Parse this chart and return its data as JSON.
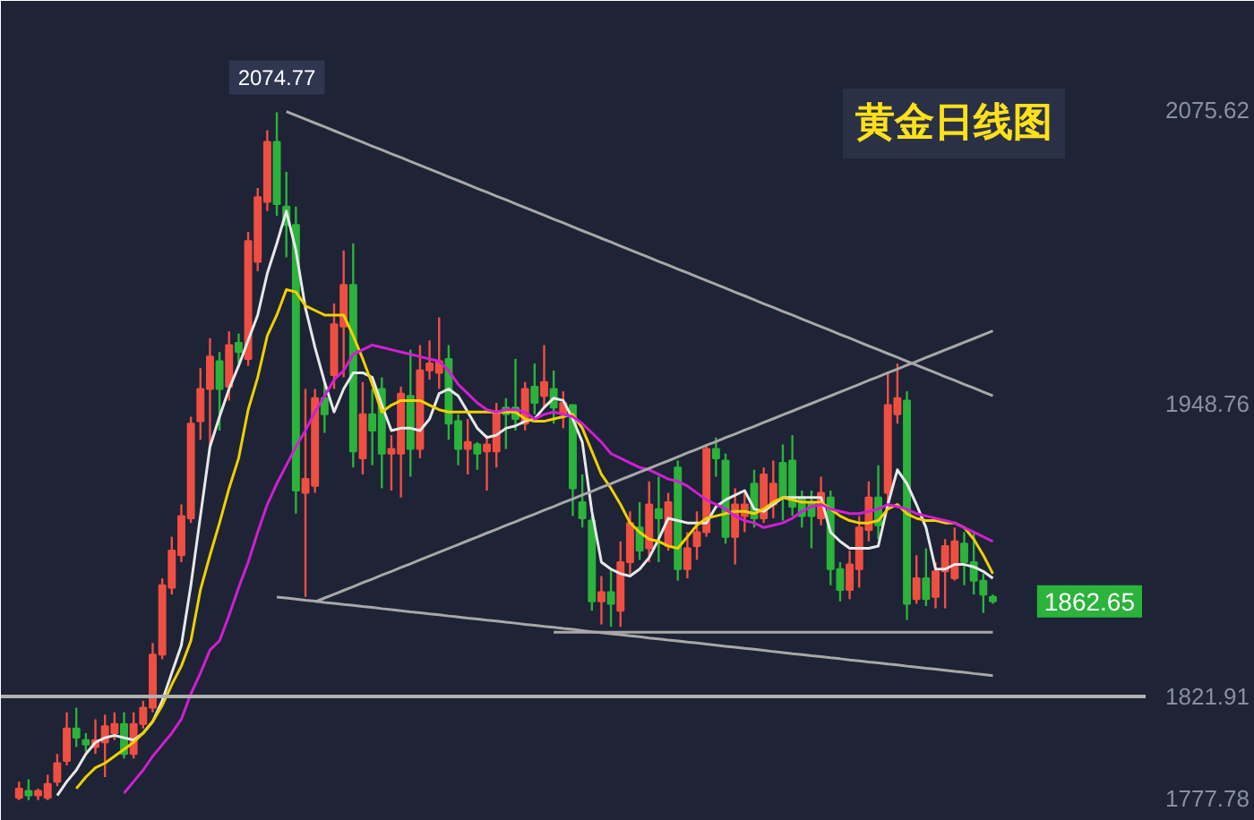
{
  "chart_data": {
    "type": "candlestick",
    "title": "黄金日线图",
    "categories": [
      null,
      null,
      null,
      null,
      null,
      null,
      null,
      null,
      null,
      null,
      null,
      null,
      null,
      null,
      null,
      null,
      null,
      null,
      null,
      null,
      null,
      null,
      null,
      null,
      null,
      null,
      null,
      null,
      null,
      null,
      null,
      null,
      null,
      null,
      null,
      null,
      null,
      null,
      null,
      null,
      null,
      null,
      null,
      null,
      null,
      null,
      null,
      null,
      null,
      null,
      null,
      null,
      null,
      null,
      null,
      null,
      null,
      null,
      null,
      null,
      null,
      null,
      null,
      null,
      null,
      null,
      null,
      null,
      null,
      null,
      null,
      null,
      null,
      null,
      null,
      null,
      null,
      null,
      null,
      null,
      null,
      null,
      null,
      null,
      null,
      null,
      null,
      null,
      null,
      null,
      null,
      null,
      null,
      null,
      null,
      null,
      null,
      null,
      null,
      null,
      null,
      null,
      null
    ],
    "ohlc": [
      [
        1778,
        1785,
        1777,
        1782
      ],
      [
        1781,
        1786,
        1777,
        1779
      ],
      [
        1779,
        1782,
        1777,
        1781
      ],
      [
        1778,
        1788,
        1777,
        1784
      ],
      [
        1785,
        1797,
        1783,
        1793
      ],
      [
        1794,
        1815,
        1792,
        1808
      ],
      [
        1808,
        1817,
        1800,
        1804
      ],
      [
        1803,
        1806,
        1798,
        1801
      ],
      [
        1800,
        1812,
        1797,
        1803
      ],
      [
        1802,
        1814,
        1787,
        1809
      ],
      [
        1806,
        1815,
        1803,
        1810
      ],
      [
        1810,
        1815,
        1795,
        1797
      ],
      [
        1797,
        1815,
        1795,
        1810
      ],
      [
        1810,
        1820,
        1808,
        1817
      ],
      [
        1817,
        1845,
        1815,
        1840
      ],
      [
        1840,
        1873,
        1838,
        1870
      ],
      [
        1869,
        1891,
        1866,
        1885
      ],
      [
        1883,
        1905,
        1880,
        1900
      ],
      [
        1899,
        1943,
        1897,
        1940
      ],
      [
        1941,
        1964,
        1933,
        1955
      ],
      [
        1955,
        1977,
        1930,
        1969
      ],
      [
        1967,
        1971,
        1937,
        1955
      ],
      [
        1956,
        1980,
        1950,
        1974
      ],
      [
        1975,
        1979,
        1966,
        1971
      ],
      [
        1968,
        2023,
        1965,
        2019
      ],
      [
        2010,
        2042,
        2006,
        2038
      ],
      [
        2036,
        2067,
        2032,
        2062
      ],
      [
        2062,
        2074.77,
        2030,
        2035
      ],
      [
        2034,
        2049,
        2012,
        2026
      ],
      [
        2026,
        2034,
        1901,
        1911
      ],
      [
        1910,
        1955,
        1865,
        1916
      ],
      [
        1913,
        1955,
        1910,
        1951
      ],
      [
        1951,
        1958,
        1936,
        1944
      ],
      [
        1961,
        1992,
        1955,
        1983
      ],
      [
        1982,
        2015,
        1960,
        2000
      ],
      [
        2000,
        2018,
        1921,
        1928
      ],
      [
        1925,
        1958,
        1918,
        1944
      ],
      [
        1944,
        1955,
        1922,
        1937
      ],
      [
        1955,
        1960,
        1912,
        1927
      ],
      [
        1927,
        1935,
        1911,
        1929
      ],
      [
        1927,
        1956,
        1908,
        1953
      ],
      [
        1952,
        1972,
        1917,
        1929
      ],
      [
        1929,
        1974,
        1925,
        1963
      ],
      [
        1963,
        1976,
        1959,
        1966
      ],
      [
        1962,
        1986,
        1955,
        1967
      ],
      [
        1968,
        1974,
        1933,
        1940
      ],
      [
        1941,
        1944,
        1922,
        1929
      ],
      [
        1929,
        1942,
        1918,
        1932
      ],
      [
        1931,
        1932,
        1920,
        1927
      ],
      [
        1928,
        1935,
        1911,
        1931
      ],
      [
        1928,
        1949,
        1921,
        1945
      ],
      [
        1947,
        1951,
        1929,
        1944
      ],
      [
        1947,
        1968,
        1937,
        1942
      ],
      [
        1940,
        1958,
        1937,
        1955
      ],
      [
        1956,
        1966,
        1944,
        1949
      ],
      [
        1952,
        1974,
        1947,
        1958
      ],
      [
        1955,
        1963,
        1940,
        1947
      ],
      [
        1944,
        1954,
        1938,
        1949
      ],
      [
        1948,
        1948,
        1900,
        1912
      ],
      [
        1906,
        1918,
        1895,
        1899
      ],
      [
        1898,
        1900,
        1859,
        1863
      ],
      [
        1863,
        1874,
        1853,
        1867
      ],
      [
        1867,
        1877,
        1852,
        1862
      ],
      [
        1859,
        1889,
        1852,
        1880
      ],
      [
        1880,
        1902,
        1875,
        1897
      ],
      [
        1895,
        1906,
        1881,
        1885
      ],
      [
        1886,
        1915,
        1880,
        1905
      ],
      [
        1903,
        1917,
        1880,
        1899
      ],
      [
        1887,
        1910,
        1885,
        1906
      ],
      [
        1921,
        1924,
        1872,
        1877
      ],
      [
        1877,
        1893,
        1873,
        1886
      ],
      [
        1887,
        1902,
        1881,
        1893
      ],
      [
        1893,
        1931,
        1891,
        1929
      ],
      [
        1929,
        1934,
        1917,
        1925
      ],
      [
        1924,
        1927,
        1888,
        1891
      ],
      [
        1891,
        1912,
        1879,
        1905
      ],
      [
        1900,
        1910,
        1893,
        1905
      ],
      [
        1914,
        1920,
        1895,
        1899
      ],
      [
        1899,
        1921,
        1897,
        1918
      ],
      [
        1905,
        1924,
        1899,
        1914
      ],
      [
        1923,
        1931,
        1898,
        1908
      ],
      [
        1924,
        1935,
        1900,
        1904
      ],
      [
        1908,
        1911,
        1895,
        1900
      ],
      [
        1906,
        1911,
        1886,
        1900
      ],
      [
        1899,
        1917,
        1896,
        1910
      ],
      [
        1908,
        1911,
        1870,
        1877
      ],
      [
        1877,
        1880,
        1863,
        1868
      ],
      [
        1868,
        1885,
        1864,
        1879
      ],
      [
        1877,
        1900,
        1869,
        1895
      ],
      [
        1894,
        1915,
        1889,
        1908
      ],
      [
        1908,
        1922,
        1890,
        1896
      ],
      [
        1910,
        1962,
        1905,
        1948
      ],
      [
        1944,
        1966,
        1940,
        1951
      ],
      [
        1950,
        1954,
        1855,
        1862
      ],
      [
        1864,
        1883,
        1862,
        1873
      ],
      [
        1873,
        1886,
        1861,
        1864
      ],
      [
        1865,
        1880,
        1860,
        1876
      ],
      [
        1876,
        1890,
        1860,
        1887
      ],
      [
        1873,
        1895,
        1872,
        1889
      ],
      [
        1888,
        1893,
        1870,
        1880
      ],
      [
        1880,
        1893,
        1866,
        1872
      ],
      [
        1872,
        1875,
        1858,
        1866
      ],
      [
        1865,
        1866,
        1862,
        1863
      ]
    ],
    "colors": [
      "#ef4f42",
      "#2bb33b",
      "#ef4f42",
      "#ef4f42",
      "#ef4f42",
      "#ef4f42",
      "#2bb33b",
      "#2bb33b",
      "#ef4f42",
      "#ef4f42",
      "#ef4f42",
      "#2bb33b",
      "#ef4f42",
      "#ef4f42",
      "#ef4f42",
      "#ef4f42",
      "#ef4f42",
      "#ef4f42",
      "#ef4f42",
      "#ef4f42",
      "#ef4f42",
      "#2bb33b",
      "#ef4f42",
      "#2bb33b",
      "#ef4f42",
      "#ef4f42",
      "#ef4f42",
      "#2bb33b",
      "#2bb33b",
      "#2bb33b",
      "#ef4f42",
      "#ef4f42",
      "#2bb33b",
      "#ef4f42",
      "#ef4f42",
      "#2bb33b",
      "#ef4f42",
      "#2bb33b",
      "#2bb33b",
      "#ef4f42",
      "#ef4f42",
      "#2bb33b",
      "#ef4f42",
      "#ef4f42",
      "#ef4f42",
      "#2bb33b",
      "#2bb33b",
      "#ef4f42",
      "#2bb33b",
      "#ef4f42",
      "#ef4f42",
      "#2bb33b",
      "#2bb33b",
      "#ef4f42",
      "#2bb33b",
      "#ef4f42",
      "#2bb33b",
      "#ef4f42",
      "#2bb33b",
      "#2bb33b",
      "#2bb33b",
      "#ef4f42",
      "#2bb33b",
      "#ef4f42",
      "#ef4f42",
      "#2bb33b",
      "#ef4f42",
      "#2bb33b",
      "#ef4f42",
      "#2bb33b",
      "#ef4f42",
      "#ef4f42",
      "#ef4f42",
      "#2bb33b",
      "#2bb33b",
      "#ef4f42",
      "#ef4f42",
      "#2bb33b",
      "#ef4f42",
      "#ef4f42",
      "#2bb33b",
      "#2bb33b",
      "#2bb33b",
      "#2bb33b",
      "#ef4f42",
      "#2bb33b",
      "#2bb33b",
      "#ef4f42",
      "#ef4f42",
      "#ef4f42",
      "#2bb33b",
      "#ef4f42",
      "#ef4f42",
      "#2bb33b",
      "#ef4f42",
      "#2bb33b",
      "#ef4f42",
      "#ef4f42",
      "#ef4f42",
      "#2bb33b",
      "#2bb33b",
      "#2bb33b",
      "#2bb33b"
    ],
    "series": [
      {
        "type": "line",
        "color": "#e8e8e8",
        "values": [
          null,
          null,
          null,
          null,
          1779,
          1785,
          1790,
          1797,
          1802,
          1804,
          1805,
          1804,
          1803,
          1806,
          1811,
          1820,
          1832,
          1844,
          1870,
          1900,
          1930,
          1943,
          1955,
          1965,
          1976,
          1987,
          2005,
          2018,
          2032,
          2015,
          1990,
          1973,
          1958,
          1945,
          1955,
          1962,
          1962,
          1960,
          1948,
          1937,
          1938,
          1938,
          1937,
          1942,
          1953,
          1955,
          1952,
          1945,
          1938,
          1934,
          1935,
          1938,
          1939,
          1941,
          1942,
          1947,
          1951,
          1950,
          1942,
          1932,
          1902,
          1880,
          1877,
          1875,
          1874,
          1877,
          1882,
          1890,
          1899,
          1898,
          1897,
          1897,
          1897,
          1904,
          1907,
          1909,
          1911,
          1903,
          1902,
          1905,
          1908,
          1908,
          1908,
          1908,
          1908,
          1893,
          1889,
          1886,
          1886,
          1886,
          1887,
          1905,
          1920,
          1914,
          1905,
          1895,
          1877,
          1877,
          1879,
          1879,
          1878,
          1876,
          1873
        ]
      },
      {
        "type": "line",
        "color": "#f0d000",
        "values": [
          null,
          null,
          null,
          null,
          null,
          null,
          1782,
          1787,
          1791,
          1793,
          1796,
          1799,
          1802,
          1806,
          1811,
          1818,
          1827,
          1835,
          1846,
          1868,
          1883,
          1897,
          1912,
          1925,
          1946,
          1960,
          1978,
          1987,
          1998,
          1997,
          1991,
          1989,
          1987,
          1987,
          1987,
          1978,
          1968,
          1957,
          1945,
          1948,
          1950,
          1950,
          1950,
          1948,
          1946,
          1945,
          1945,
          1945,
          1945,
          1945,
          1945,
          1945,
          1945,
          1942,
          1941,
          1941,
          1942,
          1943,
          1944,
          1938,
          1928,
          1918,
          1912,
          1905,
          1897,
          1893,
          1890,
          1889,
          1887,
          1886,
          1891,
          1896,
          1899,
          1900,
          1901,
          1902,
          1902,
          1901,
          1903,
          1906,
          1908,
          1907,
          1906,
          1906,
          1906,
          1903,
          1900,
          1898,
          1897,
          1897,
          1898,
          1903,
          1905,
          1901,
          1899,
          1898,
          1898,
          1897,
          1897,
          1895,
          1890,
          1883,
          1875
        ]
      },
      {
        "type": "line",
        "color": "#d21ed2",
        "values": [
          null,
          null,
          null,
          null,
          null,
          null,
          null,
          null,
          null,
          null,
          null,
          1780,
          1785,
          1790,
          1796,
          1801,
          1806,
          1812,
          1823,
          1832,
          1842,
          1846,
          1857,
          1869,
          1880,
          1893,
          1905,
          1914,
          1922,
          1930,
          1937,
          1945,
          1952,
          1959,
          1963,
          1970,
          1972,
          1974,
          1973,
          1972,
          1971,
          1970,
          1969,
          1968,
          1967,
          1963,
          1957,
          1953,
          1949,
          1946,
          1945,
          1946,
          1946,
          1945,
          1942,
          1944,
          1945,
          1944,
          1943,
          1940,
          1936,
          1932,
          1927,
          1925,
          1923,
          1921,
          1920,
          1918,
          1916,
          1915,
          1913,
          1910,
          1907,
          1905,
          1903,
          1900,
          1898,
          1897,
          1895,
          1896,
          1897,
          1899,
          1902,
          1904,
          1905,
          1903,
          1902,
          1901,
          1901,
          1902,
          1903,
          1905,
          1904,
          1903,
          1901,
          1900,
          1899,
          1898,
          1897,
          1895,
          1893,
          1891,
          1889
        ]
      },
      {
        "type": "line",
        "color": "#a8a8a8",
        "values": [
          null,
          null,
          null,
          null,
          null,
          null,
          null,
          null,
          null,
          null,
          null,
          null,
          null,
          null,
          null,
          null,
          null,
          null,
          null,
          null,
          null,
          null,
          null,
          null,
          null,
          null,
          null,
          null,
          2075.1,
          2073.4,
          2071.8,
          2070.1,
          2068.5,
          2066.8,
          2065.1,
          2063.5,
          2061.8,
          2060.1,
          2058.5,
          2056.8,
          2055.2,
          2053.5,
          2051.8,
          2050.2,
          2048.5,
          2046.8,
          2045.2,
          2043.5,
          2041.8,
          2040.2,
          2038.5,
          2036.9,
          2035.2,
          2033.5,
          2031.9,
          2030.2,
          2028.5,
          2026.9,
          2025.2,
          2023.5,
          2021.9,
          2020.2,
          2018.6,
          2016.9,
          2015.2,
          2013.6,
          2011.9,
          2010.2,
          2008.6,
          2006.9,
          2005.3,
          2003.6,
          2001.9,
          2000.3,
          1998.6,
          1996.9,
          1995.3,
          1993.6,
          1991.9,
          1990.3,
          1988.6,
          1987.0,
          1985.3,
          1983.6,
          1982.0,
          1980.3,
          1978.6,
          1977.0,
          1975.3,
          1973.6,
          1972.0,
          1970.3,
          1968.7,
          1967.0,
          1965.3,
          1963.7,
          1962.0,
          1960.3,
          1958.7,
          1957.0,
          1955.4,
          1953.7,
          1952.0
        ]
      },
      {
        "type": "line",
        "color": "#a8a8a8",
        "values": [
          null,
          null,
          null,
          null,
          null,
          null,
          null,
          null,
          null,
          null,
          null,
          null,
          null,
          null,
          null,
          null,
          null,
          null,
          null,
          null,
          null,
          null,
          null,
          null,
          null,
          null,
          null,
          null,
          null,
          null,
          null,
          1862.8,
          1864.5,
          1866.1,
          1867.8,
          1869.4,
          1871.1,
          1872.7,
          1874.4,
          1876.0,
          1877.7,
          1879.3,
          1881.0,
          1882.7,
          1884.3,
          1886.0,
          1887.6,
          1889.3,
          1890.9,
          1892.6,
          1894.2,
          1895.9,
          1897.5,
          1899.2,
          1900.8,
          1902.5,
          1904.1,
          1905.8,
          1907.4,
          1909.1,
          1910.7,
          1912.4,
          1914.0,
          1915.7,
          1917.3,
          1919.0,
          1920.6,
          1922.3,
          1923.9,
          1925.6,
          1927.3,
          1928.9,
          1930.6,
          1932.2,
          1933.9,
          1935.5,
          1937.2,
          1938.8,
          1940.5,
          1942.1,
          1943.8,
          1945.4,
          1947.1,
          1948.7,
          1950.4,
          1952.0,
          1953.7,
          1955.3,
          1957.0,
          1958.7,
          1960.3,
          1962.0,
          1963.6,
          1965.3,
          1966.9,
          1968.6,
          1970.2,
          1971.9,
          1973.5,
          1975.2,
          1976.8,
          1978.5,
          1980.1
        ]
      },
      {
        "type": "line",
        "color": "#a8a8a8",
        "values": [
          null,
          null,
          null,
          null,
          null,
          null,
          null,
          null,
          null,
          null,
          null,
          null,
          null,
          null,
          null,
          null,
          null,
          null,
          null,
          null,
          null,
          null,
          null,
          null,
          null,
          null,
          null,
          1864.9,
          1864.5,
          1864.0,
          1863.5,
          1863.1,
          1862.6,
          1862.2,
          1861.7,
          1861.3,
          1860.8,
          1860.4,
          1859.9,
          1859.5,
          1859.0,
          1858.5,
          1858.1,
          1857.6,
          1857.2,
          1856.7,
          1856.3,
          1855.8,
          1855.4,
          1854.9,
          1854.5,
          1854.0,
          1853.6,
          1853.1,
          1852.7,
          1852.2,
          1851.8,
          1851.3,
          1850.9,
          1850.4,
          1849.9,
          1849.5,
          1849.0,
          1848.6,
          1848.1,
          1847.7,
          1847.2,
          1846.8,
          1846.3,
          1845.9,
          1845.4,
          1845.0,
          1844.5,
          1844.1,
          1843.6,
          1843.2,
          1842.7,
          1842.3,
          1841.8,
          1841.3,
          1840.9,
          1840.4,
          1840.0,
          1839.5,
          1839.1,
          1838.6,
          1838.2,
          1837.7,
          1837.3,
          1836.8,
          1836.4,
          1835.9,
          1835.5,
          1835.0,
          1834.6,
          1834.1,
          1833.7,
          1833.2,
          1832.7,
          1832.3,
          1831.8,
          1831.4,
          1830.9
        ]
      },
      {
        "type": "line",
        "color": "#a8a8a8",
        "values": [
          null,
          null,
          null,
          null,
          null,
          null,
          null,
          null,
          null,
          null,
          null,
          null,
          null,
          null,
          null,
          null,
          null,
          null,
          null,
          null,
          null,
          null,
          null,
          null,
          null,
          null,
          null,
          null,
          null,
          null,
          null,
          null,
          null,
          null,
          null,
          null,
          null,
          null,
          null,
          null,
          null,
          null,
          null,
          null,
          null,
          null,
          null,
          null,
          null,
          null,
          null,
          null,
          null,
          null,
          null,
          null,
          1849.7,
          1849.7,
          1849.7,
          1849.7,
          1849.7,
          1849.7,
          1849.7,
          1849.7,
          1849.7,
          1849.7,
          1849.7,
          1849.7,
          1849.7,
          1849.7,
          1849.7,
          1849.7,
          1849.7,
          1849.7,
          1849.7,
          1849.7,
          1849.7,
          1849.7,
          1849.7,
          1849.7,
          1849.7,
          1849.7,
          1849.7,
          1849.7,
          1849.7,
          1849.7,
          1849.7,
          1849.7,
          1849.7,
          1849.7,
          1849.7,
          1849.7,
          1849.7,
          1849.7,
          1849.7,
          1849.7,
          1849.7,
          1849.7,
          1849.7,
          1849.7,
          1849.7,
          1849.7,
          1849.7
        ]
      }
    ],
    "ref_lines": [
      {
        "axis": "y",
        "value": 1821.91,
        "color": "#b0b0b0"
      }
    ],
    "annotations": [
      "2074.77",
      "1862.65"
    ],
    "ylim": [
      1768,
      2123
    ],
    "yticks": [
      1777.78,
      1821.91,
      1948.76,
      2075.62
    ],
    "tick_labels": "y",
    "grid": false
  }
}
